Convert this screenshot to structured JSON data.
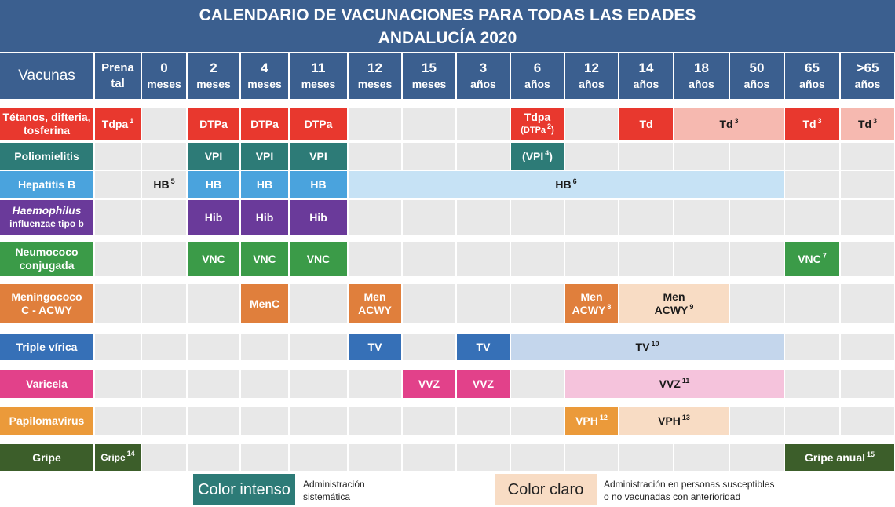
{
  "title": {
    "line1": "CALENDARIO DE VACUNACIONES PARA TODAS LAS EDADES",
    "line2": "ANDALUCÍA 2020"
  },
  "header": {
    "vacunas": "Vacunas",
    "columns": [
      {
        "top": "Prena",
        "bottom": "tal"
      },
      {
        "top": "0",
        "bottom": "meses"
      },
      {
        "top": "2",
        "bottom": "meses"
      },
      {
        "top": "4",
        "bottom": "meses"
      },
      {
        "top": "11",
        "bottom": "meses"
      },
      {
        "top": "12",
        "bottom": "meses"
      },
      {
        "top": "15",
        "bottom": "meses"
      },
      {
        "top": "3",
        "bottom": "años"
      },
      {
        "top": "6",
        "bottom": "años"
      },
      {
        "top": "12",
        "bottom": "años"
      },
      {
        "top": "14",
        "bottom": "años"
      },
      {
        "top": "18",
        "bottom": "años"
      },
      {
        "top": "50",
        "bottom": "años"
      },
      {
        "top": "65",
        "bottom": "años"
      },
      {
        "top": ">65",
        "bottom": "años"
      }
    ]
  },
  "rows": [
    {
      "lines": [
        "Tétanos, difteria,",
        "tosferina"
      ],
      "color": "#e8382e"
    },
    {
      "lines": [
        "Poliomielitis"
      ],
      "color": "#2d7b77"
    },
    {
      "lines": [
        "Hepatitis B"
      ],
      "color": "#4aa3dd"
    },
    {
      "lines": [
        "Haemophilus",
        "influenzae tipo b"
      ],
      "color": "#6a3a9a"
    },
    {
      "lines": [
        "Neumococo",
        "conjugada"
      ],
      "color": "#3b9b48"
    },
    {
      "lines": [
        "Meningococo",
        "C -  ACWY"
      ],
      "color": "#e07f3c"
    },
    {
      "lines": [
        "Triple vírica"
      ],
      "color": "#3670b7"
    },
    {
      "lines": [
        "Varicela"
      ],
      "color": "#e2418a"
    },
    {
      "lines": [
        "Papilomavirus"
      ],
      "color": "#eb9a3a"
    },
    {
      "lines": [
        "Gripe"
      ],
      "color": "#3c5e2a"
    }
  ],
  "cells": [
    {
      "row": 0,
      "col": 0,
      "span": 1,
      "text": "Tdpa",
      "sup": "1",
      "tone": "intense"
    },
    {
      "row": 0,
      "col": 2,
      "span": 1,
      "text": "DTPa",
      "tone": "intense"
    },
    {
      "row": 0,
      "col": 3,
      "span": 1,
      "text": "DTPa",
      "tone": "intense"
    },
    {
      "row": 0,
      "col": 4,
      "span": 1,
      "text": "DTPa",
      "tone": "intense"
    },
    {
      "row": 0,
      "col": 8,
      "span": 1,
      "text": "Tdpa",
      "sub": "(DTPa",
      "subsup": "2",
      "subend": ")",
      "tone": "intense"
    },
    {
      "row": 0,
      "col": 10,
      "span": 1,
      "text": "Td",
      "tone": "intense"
    },
    {
      "row": 0,
      "col": 11,
      "span": 2,
      "text": "Td",
      "sup": "3",
      "tone": "light"
    },
    {
      "row": 0,
      "col": 13,
      "span": 1,
      "text": "Td",
      "sup": "3",
      "tone": "intense"
    },
    {
      "row": 0,
      "col": 14,
      "span": 1,
      "text": "Td",
      "sup": "3",
      "tone": "light"
    },
    {
      "row": 1,
      "col": 2,
      "span": 1,
      "text": "VPI",
      "tone": "intense"
    },
    {
      "row": 1,
      "col": 3,
      "span": 1,
      "text": "VPI",
      "tone": "intense"
    },
    {
      "row": 1,
      "col": 4,
      "span": 1,
      "text": "VPI",
      "tone": "intense"
    },
    {
      "row": 1,
      "col": 8,
      "span": 1,
      "text": "(VPI",
      "sup": "4",
      "end": ")",
      "tone": "intense"
    },
    {
      "row": 2,
      "col": 1,
      "span": 1,
      "text": "HB",
      "sup": "5",
      "tone": "none"
    },
    {
      "row": 2,
      "col": 2,
      "span": 1,
      "text": "HB",
      "tone": "intense"
    },
    {
      "row": 2,
      "col": 3,
      "span": 1,
      "text": "HB",
      "tone": "intense"
    },
    {
      "row": 2,
      "col": 4,
      "span": 1,
      "text": "HB",
      "tone": "intense"
    },
    {
      "row": 2,
      "col": 5,
      "span": 8,
      "text": "HB",
      "sup": "6",
      "tone": "light"
    },
    {
      "row": 3,
      "col": 2,
      "span": 1,
      "text": "Hib",
      "tone": "intense"
    },
    {
      "row": 3,
      "col": 3,
      "span": 1,
      "text": "Hib",
      "tone": "intense"
    },
    {
      "row": 3,
      "col": 4,
      "span": 1,
      "text": "Hib",
      "tone": "intense"
    },
    {
      "row": 4,
      "col": 2,
      "span": 1,
      "text": "VNC",
      "tone": "intense"
    },
    {
      "row": 4,
      "col": 3,
      "span": 1,
      "text": "VNC",
      "tone": "intense"
    },
    {
      "row": 4,
      "col": 4,
      "span": 1,
      "text": "VNC",
      "tone": "intense"
    },
    {
      "row": 4,
      "col": 13,
      "span": 1,
      "text": "VNC",
      "sup": "7",
      "tone": "intense"
    },
    {
      "row": 5,
      "col": 3,
      "span": 1,
      "text": "MenC",
      "tone": "intense"
    },
    {
      "row": 5,
      "col": 5,
      "span": 1,
      "text": "Men",
      "line2": "ACWY",
      "tone": "intense"
    },
    {
      "row": 5,
      "col": 9,
      "span": 1,
      "text": "Men",
      "line2": "ACWY",
      "sup2": "8",
      "tone": "intense"
    },
    {
      "row": 5,
      "col": 10,
      "span": 2,
      "text": "Men",
      "line2": "ACWY",
      "sup2": "9",
      "tone": "light"
    },
    {
      "row": 6,
      "col": 5,
      "span": 1,
      "text": "TV",
      "tone": "intense"
    },
    {
      "row": 6,
      "col": 7,
      "span": 1,
      "text": "TV",
      "tone": "intense"
    },
    {
      "row": 6,
      "col": 8,
      "span": 5,
      "text": "TV",
      "sup": "10",
      "tone": "light"
    },
    {
      "row": 7,
      "col": 6,
      "span": 1,
      "text": "VVZ",
      "tone": "intense"
    },
    {
      "row": 7,
      "col": 7,
      "span": 1,
      "text": "VVZ",
      "tone": "intense"
    },
    {
      "row": 7,
      "col": 9,
      "span": 4,
      "text": "VVZ",
      "sup": "11",
      "tone": "light"
    },
    {
      "row": 8,
      "col": 9,
      "span": 1,
      "text": "VPH",
      "sup": "12",
      "tone": "intense"
    },
    {
      "row": 8,
      "col": 10,
      "span": 2,
      "text": "VPH",
      "sup": "13",
      "tone": "light"
    },
    {
      "row": 9,
      "col": 0,
      "span": 1,
      "text": "Gripe",
      "sup": "14",
      "tone": "intense",
      "small": true
    },
    {
      "row": 9,
      "col": 13,
      "span": 2,
      "text": "Gripe anual",
      "sup": "15",
      "tone": "intense"
    }
  ],
  "colors": {
    "header": "#3b5f8f",
    "empty": "#e8e8e8",
    "light": [
      "#f6b9b0",
      "#a9d2cf",
      "#c6e2f5",
      "#d4c5e4",
      "#c9e6cb",
      "#f8dcc4",
      "#c4d6ec",
      "#f5c3dc",
      "#f8dcc4",
      "#c4d3b8"
    ]
  },
  "legend": {
    "intense_label": "Color intenso",
    "intense_desc": [
      "Administración",
      "sistemática"
    ],
    "intense_color": "#2d7b77",
    "light_label": "Color claro",
    "light_desc": [
      "Administración en personas susceptibles",
      "o no vacunadas con anterioridad"
    ],
    "light_color": "#f8dcc4"
  }
}
